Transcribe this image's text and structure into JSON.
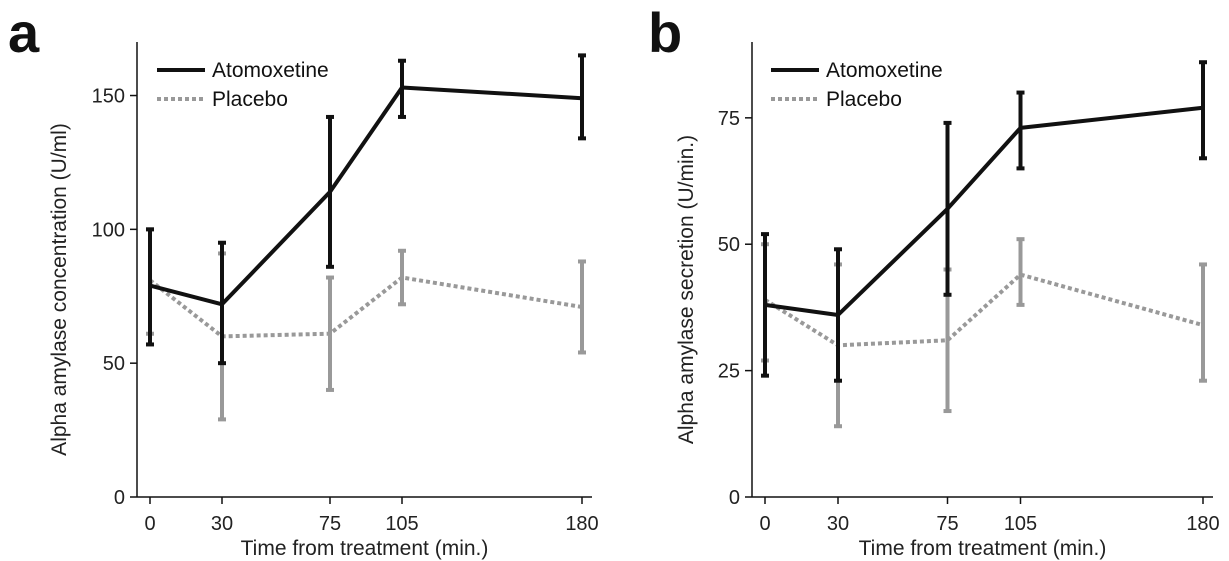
{
  "chart_data": [
    {
      "type": "line",
      "panel_label": "a",
      "xlabel": "Time from treatment (min.)",
      "ylabel": "Alpha amylase concentration (U/ml)",
      "x": [
        0,
        30,
        75,
        105,
        180
      ],
      "xlim": [
        0,
        190
      ],
      "ylim": [
        0,
        170
      ],
      "yticks": [
        0,
        50,
        100,
        150
      ],
      "xticks": [
        0,
        30,
        75,
        105,
        180
      ],
      "grid": false,
      "legend_position": "top-left",
      "series": [
        {
          "name": "Atomoxetine",
          "style": "solid",
          "color": "#111111",
          "values": [
            79,
            72,
            114,
            153,
            149
          ],
          "error_low": [
            57,
            50,
            86,
            142,
            134
          ],
          "error_high": [
            100,
            95,
            142,
            163,
            165
          ]
        },
        {
          "name": "Placebo",
          "style": "dotted",
          "color": "#999999",
          "values": [
            81,
            60,
            61,
            82,
            71
          ],
          "error_low": [
            61,
            29,
            40,
            72,
            54
          ],
          "error_high": [
            100,
            91,
            82,
            92,
            88
          ]
        }
      ]
    },
    {
      "type": "line",
      "panel_label": "b",
      "xlabel": "Time from treatment (min.)",
      "ylabel": "Alpha amylase secretion (U/min.)",
      "x": [
        0,
        30,
        75,
        105,
        180
      ],
      "xlim": [
        0,
        190
      ],
      "ylim": [
        0,
        90
      ],
      "yticks": [
        0,
        25,
        50,
        75
      ],
      "xticks": [
        0,
        30,
        75,
        105,
        180
      ],
      "grid": false,
      "legend_position": "top-left",
      "series": [
        {
          "name": "Atomoxetine",
          "style": "solid",
          "color": "#111111",
          "values": [
            38,
            36,
            57,
            73,
            77
          ],
          "error_low": [
            24,
            23,
            40,
            65,
            67
          ],
          "error_high": [
            52,
            49,
            74,
            80,
            86
          ]
        },
        {
          "name": "Placebo",
          "style": "dotted",
          "color": "#999999",
          "values": [
            39,
            30,
            31,
            44,
            34
          ],
          "error_low": [
            27,
            14,
            17,
            38,
            23
          ],
          "error_high": [
            50,
            46,
            45,
            51,
            46
          ]
        }
      ]
    }
  ]
}
